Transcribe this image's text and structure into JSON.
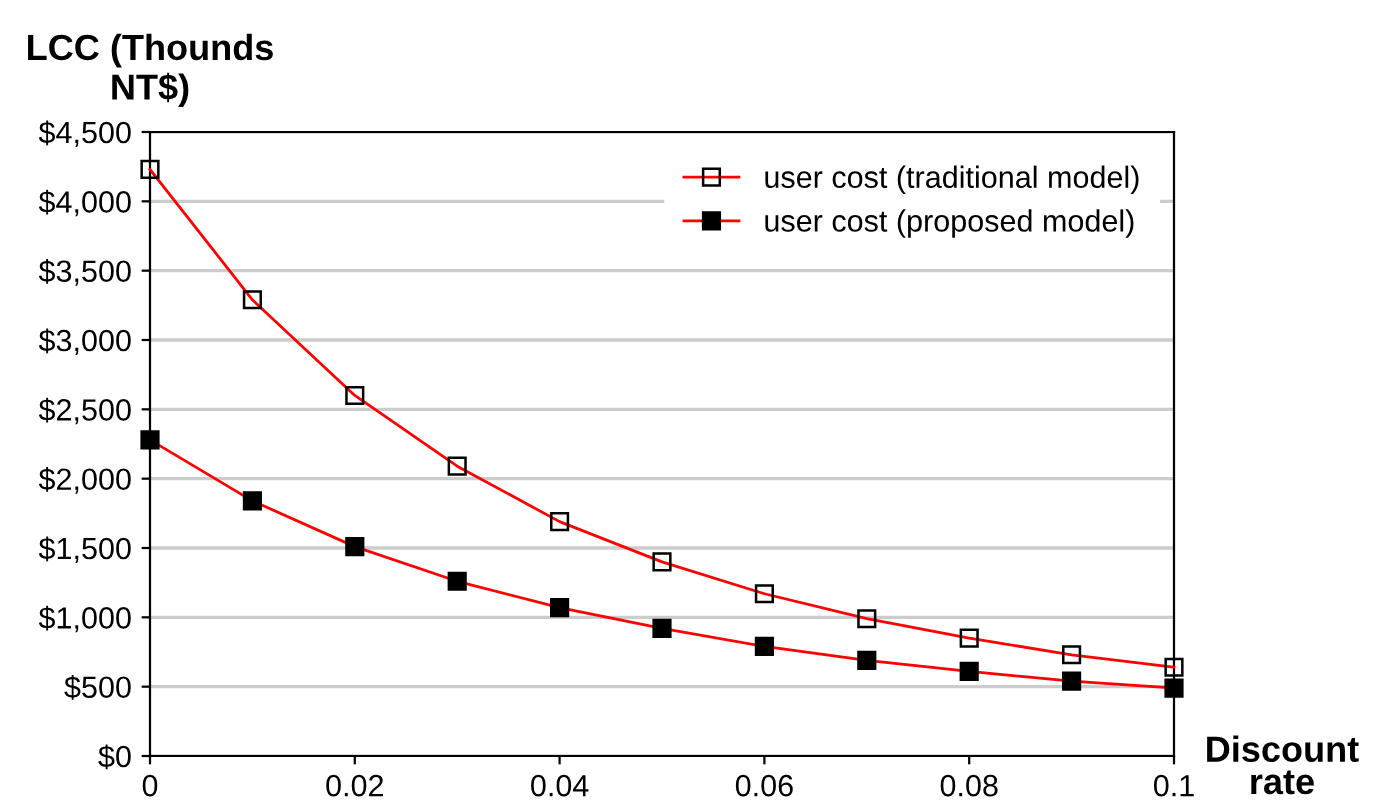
{
  "chart_data": {
    "type": "line",
    "xlabel": "Discount\nrate",
    "ylabel": "LCC (Thounds\nNT$)",
    "x": [
      0,
      0.01,
      0.02,
      0.03,
      0.04,
      0.05,
      0.06,
      0.07,
      0.08,
      0.09,
      0.1
    ],
    "series": [
      {
        "name": "user cost (traditional model)",
        "color": "#ff0000",
        "marker": "square",
        "values": [
          4230,
          3290,
          2600,
          2090,
          1690,
          1400,
          1170,
          990,
          850,
          730,
          640
        ]
      },
      {
        "name": "user cost (proposed model)",
        "color": "#ff0000",
        "marker": "square",
        "values": [
          2280,
          1840,
          1510,
          1260,
          1070,
          920,
          790,
          690,
          610,
          540,
          490
        ]
      }
    ],
    "xlim": [
      0,
      0.1
    ],
    "xticks": [
      0,
      0.02,
      0.04,
      0.06,
      0.08,
      0.1
    ],
    "ylim": [
      0,
      4500
    ],
    "yticks": [
      {
        "value": 0,
        "label": "$0"
      },
      {
        "value": 500,
        "label": "$500"
      },
      {
        "value": 1000,
        "label": "$1,000"
      },
      {
        "value": 1500,
        "label": "$1,500"
      },
      {
        "value": 2000,
        "label": "$2,000"
      },
      {
        "value": 2500,
        "label": "$2,500"
      },
      {
        "value": 3000,
        "label": "$3,000"
      },
      {
        "value": 3500,
        "label": "$3,500"
      },
      {
        "value": 4000,
        "label": "$4,000"
      },
      {
        "value": 4500,
        "label": "$4,500"
      }
    ],
    "grid": "y",
    "legend": "top right",
    "line_style": "solid"
  }
}
